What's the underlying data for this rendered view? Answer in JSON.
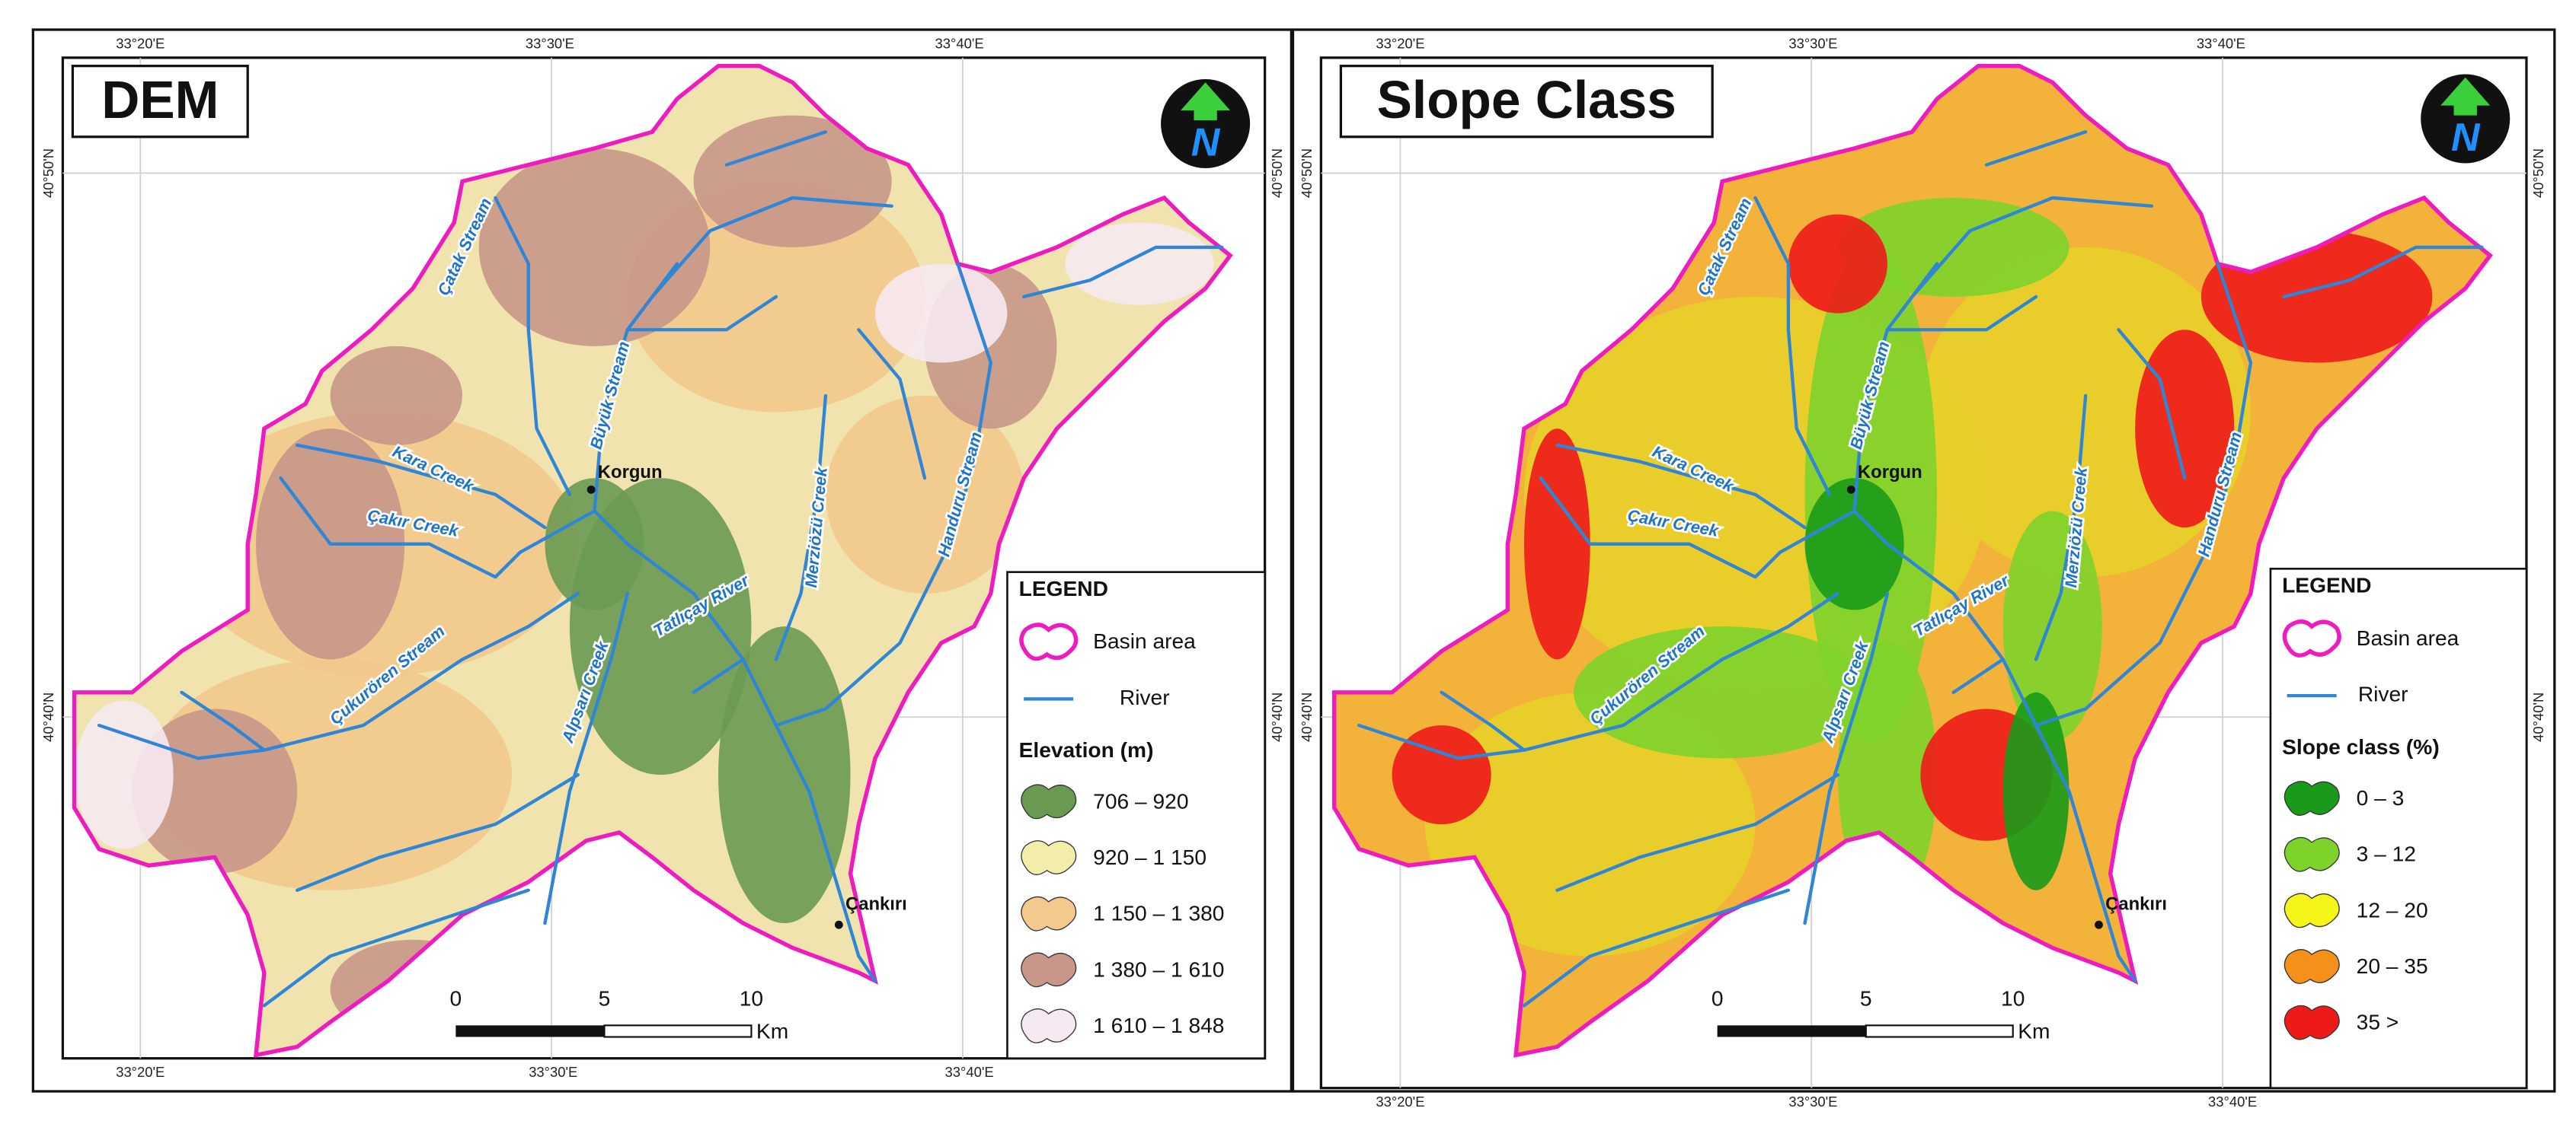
{
  "panels": [
    {
      "title": "DEM",
      "north": "N",
      "coords": {
        "top": [
          "33°20'E",
          "33°30'E",
          "33°40'E"
        ],
        "bottom": [
          "33°20'E",
          "33°30'E",
          "33°40'E"
        ],
        "left": [
          "40°50'N",
          "40°40'N"
        ],
        "right": [
          "40°50'N",
          "40°40'N"
        ]
      },
      "towns": [
        "Korgun",
        "Çankırı"
      ],
      "streams": [
        "Çatak Stream",
        "Büyük Stream",
        "Kara Creek",
        "Çakır Creek",
        "Merziözü Creek",
        "Handuru Stream",
        "Tatlıçay River",
        "Alpsarı Creek",
        "Çukurören Stream"
      ],
      "legend": {
        "title": "LEGEND",
        "basin": "Basin area",
        "river": "River",
        "class_title": "Elevation (m)",
        "classes": [
          "706 – 920",
          "920 – 1 150",
          "1 150 – 1 380",
          "1 380 – 1 610",
          "1 610 – 1 848"
        ]
      },
      "scale": {
        "ticks": [
          "0",
          "5",
          "10"
        ],
        "unit": "Km"
      }
    },
    {
      "title": "Slope Class",
      "north": "N",
      "coords": {
        "top": [
          "33°20'E",
          "33°30'E",
          "33°40'E"
        ],
        "bottom": [
          "33°20'E",
          "33°30'E",
          "33°40'E"
        ],
        "left": [
          "40°50'N",
          "40°40'N"
        ],
        "right": [
          "40°50'N",
          "40°40'N"
        ]
      },
      "towns": [
        "Korgun",
        "Çankırı"
      ],
      "streams": [
        "Çatak Stream",
        "Büyük Stream",
        "Kara Creek",
        "Çakır Creek",
        "Merziözü Creek",
        "Handuru Stream",
        "Tatlıçay River",
        "Alpsarı Creek",
        "Çukurören Stream"
      ],
      "legend": {
        "title": "LEGEND",
        "basin": "Basin area",
        "river": "River",
        "class_title": "Slope class (%)",
        "classes": [
          "0 – 3",
          "3 – 12",
          "12 – 20",
          "20 – 35",
          "35 >"
        ]
      },
      "scale": {
        "ticks": [
          "0",
          "5",
          "10"
        ],
        "unit": "Km"
      }
    }
  ]
}
